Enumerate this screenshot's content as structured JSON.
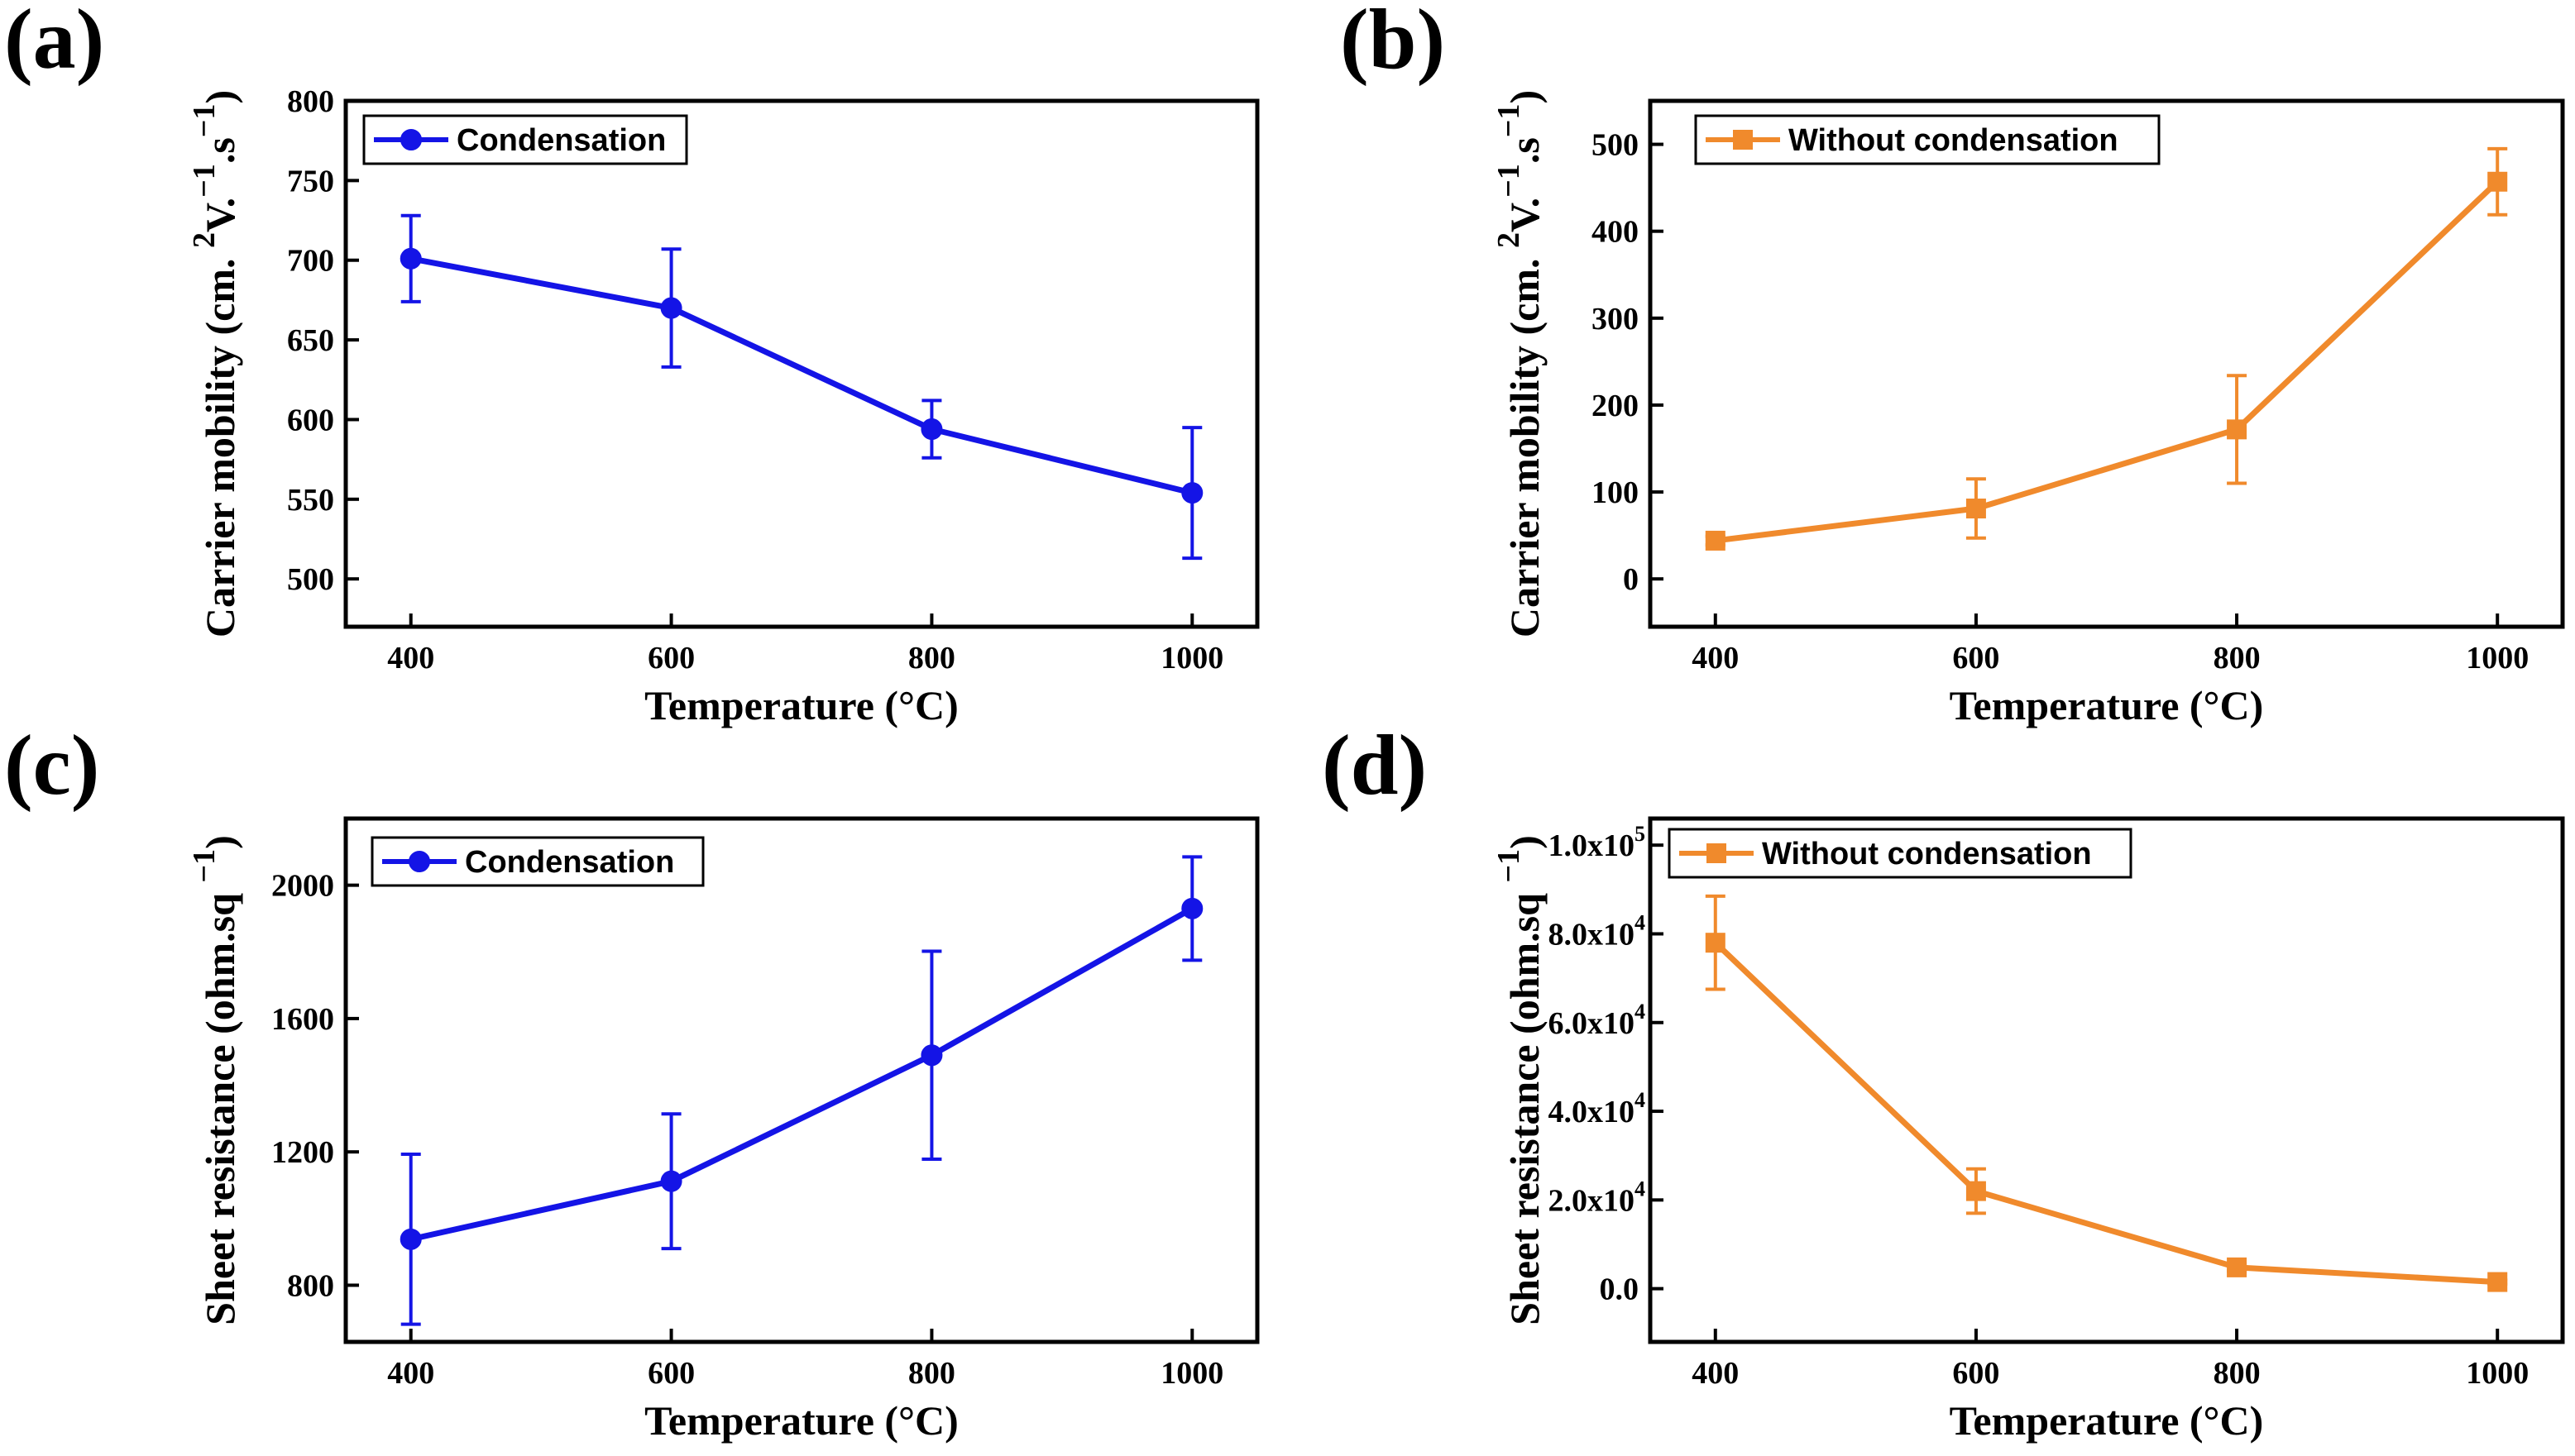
{
  "chart_data": [
    {
      "type": "line",
      "panel_label": "(a)",
      "color": "#1414e6",
      "marker": "circle",
      "legend": "Condensation",
      "legend_position": "top-left",
      "xlabel": "Temperature (°C)",
      "ylabel": "Carrier mobility (cm.²V.⁻¹.s⁻¹)",
      "ylabel_main": "Carrier mobility (cm.",
      "ylabel_parts": [
        {
          "text": "Carrier mobility (cm.",
          "sup": false
        },
        {
          "text": "2",
          "sup": true
        },
        {
          "text": "V.",
          "sup": false
        },
        {
          "text": "−1",
          "sup": true
        },
        {
          "text": ".s",
          "sup": false
        },
        {
          "text": "−1",
          "sup": true
        },
        {
          "text": ")",
          "sup": false
        }
      ],
      "x": [
        400,
        600,
        800,
        1000
      ],
      "y": [
        701,
        670,
        594,
        554
      ],
      "yerr": [
        27,
        37,
        18,
        41
      ],
      "xlim": [
        350,
        1050
      ],
      "ylim": [
        470,
        800
      ],
      "xticks": [
        400,
        600,
        800,
        1000
      ],
      "xtick_labels": [
        "400",
        "600",
        "800",
        "1000"
      ],
      "yticks": [
        500,
        550,
        600,
        650,
        700,
        750,
        800
      ],
      "ytick_labels": [
        "500",
        "550",
        "600",
        "650",
        "700",
        "750",
        "800"
      ],
      "grid": false
    },
    {
      "type": "line",
      "panel_label": "(b)",
      "color": "#f08a2c",
      "marker": "square",
      "legend": "Without condensation",
      "legend_position": "top-left",
      "xlabel": "Temperature (°C)",
      "ylabel": "Carrier mobility (cm.²V.⁻¹.s⁻¹)",
      "ylabel_main": "Carrier mobility (cm.",
      "ylabel_parts": [
        {
          "text": "Carrier mobility (cm.",
          "sup": false
        },
        {
          "text": "2",
          "sup": true
        },
        {
          "text": "V.",
          "sup": false
        },
        {
          "text": "−1",
          "sup": true
        },
        {
          "text": ".s",
          "sup": false
        },
        {
          "text": "−1",
          "sup": true
        },
        {
          "text": ")",
          "sup": false
        }
      ],
      "x": [
        400,
        600,
        800,
        1000
      ],
      "y": [
        44,
        81,
        172,
        457
      ],
      "yerr": [
        5,
        34,
        62,
        38
      ],
      "xlim": [
        350,
        1050
      ],
      "ylim": [
        -55,
        550
      ],
      "xticks": [
        400,
        600,
        800,
        1000
      ],
      "xtick_labels": [
        "400",
        "600",
        "800",
        "1000"
      ],
      "yticks": [
        0,
        100,
        200,
        300,
        400,
        500
      ],
      "ytick_labels": [
        "0",
        "100",
        "200",
        "300",
        "400",
        "500"
      ],
      "grid": false
    },
    {
      "type": "line",
      "panel_label": "(c)",
      "color": "#1414e6",
      "marker": "circle",
      "legend": "Condensation",
      "legend_position": "top-left",
      "xlabel": "Temperature (°C)",
      "ylabel": "Sheet resistance (ohm.sq⁻¹)",
      "ylabel_main": "Sheet resistance (ohm.sq",
      "ylabel_parts": [
        {
          "text": "Sheet resistance (ohm.sq",
          "sup": false
        },
        {
          "text": "−1",
          "sup": true
        },
        {
          "text": ")",
          "sup": false
        }
      ],
      "x": [
        400,
        600,
        800,
        1000
      ],
      "y": [
        938,
        1112,
        1490,
        1930
      ],
      "yerr": [
        255,
        202,
        312,
        155
      ],
      "xlim": [
        350,
        1050
      ],
      "ylim": [
        630,
        2200
      ],
      "xticks": [
        400,
        600,
        800,
        1000
      ],
      "xtick_labels": [
        "400",
        "600",
        "800",
        "1000"
      ],
      "yticks": [
        800,
        1200,
        1600,
        2000
      ],
      "ytick_labels": [
        "800",
        "1200",
        "1600",
        "2000"
      ],
      "grid": false
    },
    {
      "type": "line",
      "panel_label": "(d)",
      "color": "#f08a2c",
      "marker": "square",
      "legend": "Without condensation",
      "legend_position": "top-left",
      "xlabel": "Temperature (°C)",
      "ylabel": "Sheet resistance (ohm.sq⁻¹)",
      "ylabel_main": "Sheet resistance (ohm.sq",
      "ylabel_parts": [
        {
          "text": "Sheet resistance (ohm.sq",
          "sup": false
        },
        {
          "text": "−1",
          "sup": true
        },
        {
          "text": ")",
          "sup": false
        }
      ],
      "x": [
        400,
        600,
        800,
        1000
      ],
      "y": [
        78000,
        22000,
        4800,
        1500
      ],
      "yerr": [
        10500,
        5000,
        800,
        400
      ],
      "xlim": [
        350,
        1050
      ],
      "ylim": [
        -12000,
        106000
      ],
      "xticks": [
        400,
        600,
        800,
        1000
      ],
      "xtick_labels": [
        "400",
        "600",
        "800",
        "1000"
      ],
      "yticks": [
        0,
        20000,
        40000,
        60000,
        80000,
        100000
      ],
      "ytick_labels": [
        "0.0",
        "2.0x10",
        "4.0x10",
        "6.0x10",
        "8.0x10",
        "1.0x10"
      ],
      "ytick_exponents": [
        "",
        "4",
        "4",
        "4",
        "4",
        "5"
      ],
      "grid": false
    }
  ]
}
